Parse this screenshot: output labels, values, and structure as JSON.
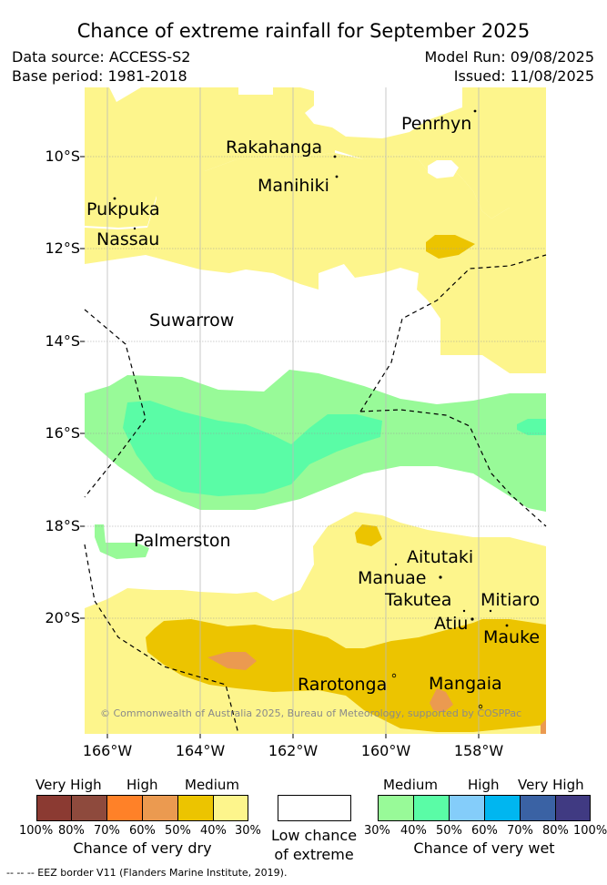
{
  "header": {
    "title": "Chance of extreme rainfall for September 2025",
    "data_source": "Data source: ACCESS-S2",
    "base_period": "Base period: 1981-2018",
    "model_run": "Model Run: 09/08/2025",
    "issued": "Issued: 11/08/2025"
  },
  "map": {
    "lat_labels": [
      "10°S",
      "12°S",
      "14°S",
      "16°S",
      "18°S",
      "20°S"
    ],
    "lon_labels": [
      "166°W",
      "164°W",
      "162°W",
      "160°W",
      "158°W"
    ],
    "places": [
      {
        "name": "Penrhyn"
      },
      {
        "name": "Rakahanga"
      },
      {
        "name": "Manihiki"
      },
      {
        "name": "Pukpuka"
      },
      {
        "name": "Nassau"
      },
      {
        "name": "Suwarrow"
      },
      {
        "name": "Palmerston"
      },
      {
        "name": "Aitutaki"
      },
      {
        "name": "Manuae"
      },
      {
        "name": "Takutea"
      },
      {
        "name": "Mitiaro"
      },
      {
        "name": "Atiu"
      },
      {
        "name": "Mauke"
      },
      {
        "name": "Rarotonga"
      },
      {
        "name": "Mangaia"
      }
    ],
    "copyright": "© Commonwealth of Australia 2025, Bureau of Meteorology, supported by COSPPac"
  },
  "legend": {
    "dry": {
      "categories": [
        "Very High",
        "High",
        "Medium"
      ],
      "colors": [
        "#8b3a32",
        "#8e4a3d",
        "#ff8128",
        "#eb9a50",
        "#ecc400",
        "#fdf58c"
      ],
      "percents": [
        "100%",
        "80%",
        "70%",
        "60%",
        "50%",
        "40%",
        "30%"
      ],
      "caption": "Chance of very dry"
    },
    "low": {
      "color": "#ffffff",
      "caption_line1": "Low chance",
      "caption_line2": "of extreme"
    },
    "wet": {
      "categories": [
        "Medium",
        "High",
        "Very High"
      ],
      "colors": [
        "#98fa98",
        "#5afca6",
        "#84cdfa",
        "#00b6f0",
        "#3a62a4",
        "#403a82"
      ],
      "percents": [
        "30%",
        "40%",
        "50%",
        "60%",
        "70%",
        "80%",
        "100%"
      ],
      "caption": "Chance of very wet"
    },
    "eez_note": "--  --  -- EEZ border V11 (Flanders Marine Institute, 2019)."
  }
}
